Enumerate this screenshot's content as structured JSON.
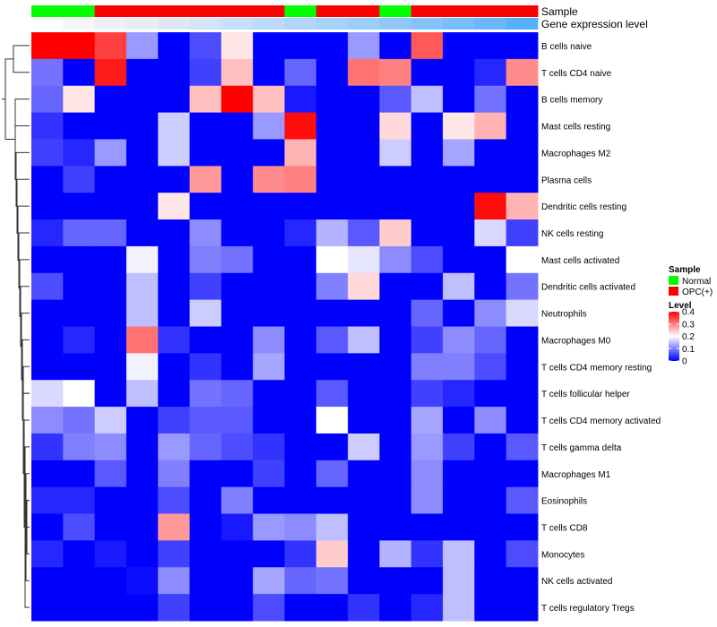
{
  "chart_data": {
    "type": "heatmap",
    "annotation_tracks": [
      {
        "label": "Sample",
        "key": "sample"
      },
      {
        "label": "Gene expression level",
        "key": "expr"
      }
    ],
    "column_annotations": {
      "sample": [
        "Normal",
        "Normal",
        "OPC(+)",
        "OPC(+)",
        "OPC(+)",
        "OPC(+)",
        "OPC(+)",
        "OPC(+)",
        "Normal",
        "OPC(+)",
        "OPC(+)",
        "Normal",
        "OPC(+)",
        "OPC(+)",
        "OPC(+)",
        "OPC(+)"
      ],
      "expr": [
        "#ffffff",
        "#f6f6f8",
        "#eef0f5",
        "#e8ecf4",
        "#dfe7f4",
        "#d5e3f6",
        "#c9def8",
        "#bcdaf9",
        "#b2d6f9",
        "#a8d2f9",
        "#9dcdf9",
        "#91c8f9",
        "#85c3f9",
        "#78bef9",
        "#6ab8f9",
        "#57b0f8"
      ]
    },
    "rows": [
      "B cells naive",
      "T cells CD4 naive",
      "B cells memory",
      "Mast cells resting",
      "Macrophages M2",
      "Plasma cells",
      "Dendritic cells resting",
      "NK cells resting",
      "Mast cells activated",
      "Dendritic cells activated",
      "Neutrophils",
      "Macrophages M0",
      "T cells CD4 memory resting",
      "T cells follicular helper",
      "T cells CD4 memory activated",
      "T cells gamma delta",
      "Macrophages M1",
      "Eosinophils",
      "T cells CD8",
      "Monocytes",
      "NK cells activated",
      "T cells regulatory  Tregs"
    ],
    "values": [
      [
        0.4,
        0.4,
        0.35,
        0.12,
        0.0,
        0.06,
        0.22,
        0.0,
        0.0,
        0.0,
        0.12,
        0.0,
        0.33,
        0.0,
        0.0,
        0.0
      ],
      [
        0.09,
        0.0,
        0.38,
        0.0,
        0.0,
        0.05,
        0.25,
        0.0,
        0.08,
        0.0,
        0.31,
        0.3,
        0.0,
        0.0,
        0.03,
        0.29
      ],
      [
        0.08,
        0.22,
        0.0,
        0.0,
        0.0,
        0.25,
        0.4,
        0.25,
        0.02,
        0.0,
        0.0,
        0.07,
        0.15,
        0.0,
        0.09,
        0.0
      ],
      [
        0.04,
        0.0,
        0.0,
        0.0,
        0.16,
        0.0,
        0.0,
        0.12,
        0.39,
        0.0,
        0.0,
        0.23,
        0.0,
        0.22,
        0.26,
        0.0
      ],
      [
        0.05,
        0.03,
        0.12,
        0.0,
        0.16,
        0.0,
        0.0,
        0.0,
        0.26,
        0.0,
        0.0,
        0.16,
        0.0,
        0.13,
        0.0,
        0.0
      ],
      [
        0.0,
        0.05,
        0.0,
        0.0,
        0.0,
        0.28,
        0.0,
        0.29,
        0.3,
        0.0,
        0.0,
        0.0,
        0.0,
        0.0,
        0.0,
        0.0
      ],
      [
        0.0,
        0.0,
        0.0,
        0.0,
        0.22,
        0.0,
        0.0,
        0.0,
        0.0,
        0.0,
        0.0,
        0.0,
        0.0,
        0.0,
        0.39,
        0.26
      ],
      [
        0.03,
        0.08,
        0.08,
        0.0,
        0.0,
        0.11,
        0.0,
        0.0,
        0.03,
        0.14,
        0.07,
        0.24,
        0.0,
        0.0,
        0.17,
        0.05
      ],
      [
        0.0,
        0.0,
        0.0,
        0.19,
        0.0,
        0.1,
        0.09,
        0.0,
        0.0,
        0.2,
        0.18,
        0.11,
        0.06,
        0.0,
        0.0,
        0.2
      ],
      [
        0.06,
        0.0,
        0.0,
        0.15,
        0.0,
        0.05,
        0.0,
        0.0,
        0.0,
        0.1,
        0.23,
        0.0,
        0.0,
        0.15,
        0.0,
        0.09
      ],
      [
        0.0,
        0.0,
        0.0,
        0.15,
        0.0,
        0.16,
        0.0,
        0.0,
        0.0,
        0.0,
        0.0,
        0.0,
        0.08,
        0.0,
        0.11,
        0.17
      ],
      [
        0.0,
        0.03,
        0.0,
        0.31,
        0.04,
        0.0,
        0.0,
        0.11,
        0.0,
        0.07,
        0.15,
        0.0,
        0.05,
        0.11,
        0.08,
        0.0
      ],
      [
        0.0,
        0.0,
        0.0,
        0.19,
        0.0,
        0.04,
        0.0,
        0.13,
        0.0,
        0.0,
        0.0,
        0.0,
        0.1,
        0.1,
        0.06,
        0.0
      ],
      [
        0.17,
        0.2,
        0.0,
        0.15,
        0.0,
        0.09,
        0.08,
        0.0,
        0.0,
        0.07,
        0.0,
        0.0,
        0.05,
        0.03,
        0.0,
        0.0
      ],
      [
        0.11,
        0.09,
        0.16,
        0.0,
        0.05,
        0.07,
        0.07,
        0.0,
        0.0,
        0.2,
        0.0,
        0.0,
        0.13,
        0.0,
        0.11,
        0.0
      ],
      [
        0.04,
        0.1,
        0.11,
        0.0,
        0.12,
        0.08,
        0.06,
        0.04,
        0.0,
        0.0,
        0.16,
        0.0,
        0.12,
        0.05,
        0.0,
        0.07
      ],
      [
        0.0,
        0.0,
        0.07,
        0.0,
        0.1,
        0.0,
        0.0,
        0.05,
        0.0,
        0.08,
        0.0,
        0.0,
        0.11,
        0.0,
        0.0,
        0.0
      ],
      [
        0.03,
        0.03,
        0.0,
        0.0,
        0.06,
        0.0,
        0.1,
        0.0,
        0.0,
        0.0,
        0.0,
        0.0,
        0.11,
        0.0,
        0.0,
        0.07
      ],
      [
        0.0,
        0.06,
        0.0,
        0.0,
        0.28,
        0.0,
        0.02,
        0.12,
        0.11,
        0.15,
        0.0,
        0.0,
        0.0,
        0.0,
        0.0,
        0.0
      ],
      [
        0.03,
        0.0,
        0.02,
        0.0,
        0.05,
        0.0,
        0.0,
        0.0,
        0.04,
        0.24,
        0.0,
        0.14,
        0.04,
        0.15,
        0.0,
        0.06
      ],
      [
        0.0,
        0.0,
        0.0,
        0.01,
        0.11,
        0.0,
        0.0,
        0.13,
        0.08,
        0.09,
        0.0,
        0.0,
        0.0,
        0.15,
        0.0,
        0.0
      ],
      [
        0.0,
        0.0,
        0.0,
        0.0,
        0.05,
        0.0,
        0.0,
        0.06,
        0.0,
        0.0,
        0.04,
        0.0,
        0.03,
        0.15,
        0.0,
        0.0
      ]
    ],
    "legends": {
      "sample": {
        "title": "Sample",
        "items": [
          {
            "label": "Normal",
            "color": "#00ff00"
          },
          {
            "label": "OPC(+)",
            "color": "#ff0000"
          }
        ]
      },
      "level": {
        "title": "Level",
        "ticks": [
          "0.4",
          "0.3",
          "0.2",
          "0.1",
          "0"
        ],
        "range": [
          0,
          0.4
        ],
        "colors": {
          "low": "#0000ff",
          "mid": "#ffffff",
          "high": "#ff0000"
        }
      }
    }
  }
}
